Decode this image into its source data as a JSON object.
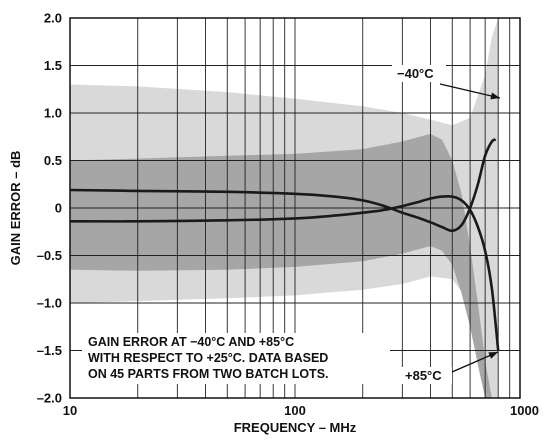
{
  "chart_data": {
    "type": "line",
    "xlabel": "FREQUENCY – MHz",
    "ylabel": "GAIN ERROR – dB",
    "x_scale": "log",
    "xlim": [
      10,
      1000
    ],
    "ylim": [
      -2.0,
      2.0
    ],
    "grid": true,
    "x_ticks": [
      {
        "value": 10,
        "label": "10"
      },
      {
        "value": 100,
        "label": "100"
      },
      {
        "value": 1000,
        "label": "1000"
      }
    ],
    "y_ticks": [
      {
        "value": 2.0,
        "label": "2.0"
      },
      {
        "value": 1.5,
        "label": "1.5"
      },
      {
        "value": 1.0,
        "label": "1.0"
      },
      {
        "value": 0.5,
        "label": "0.5"
      },
      {
        "value": 0,
        "label": "0"
      },
      {
        "value": -0.5,
        "label": "–0.5"
      },
      {
        "value": -1.0,
        "label": "–1.0"
      },
      {
        "value": -1.5,
        "label": "–1.5"
      },
      {
        "value": -2.0,
        "label": "–2.0"
      }
    ],
    "annotation_lines": [
      "GAIN ERROR AT −40°C AND +85°C",
      "WITH RESPECT TO +25°C. DATA BASED",
      "ON 45 PARTS FROM TWO BATCH LOTS."
    ],
    "bands": [
      {
        "for": "−40°C",
        "color": "#d9d9d9",
        "x": [
          10,
          20,
          50,
          100,
          200,
          300,
          400,
          500,
          600,
          700,
          750,
          800
        ],
        "upper": [
          1.3,
          1.28,
          1.22,
          1.15,
          1.07,
          1.0,
          0.93,
          0.87,
          0.95,
          1.4,
          1.8,
          2.0
        ],
        "lower": [
          -1.0,
          -0.98,
          -0.95,
          -0.92,
          -0.86,
          -0.8,
          -0.72,
          -0.75,
          -1.0,
          -1.6,
          -2.0,
          -2.0
        ]
      },
      {
        "for": "+85°C",
        "color": "#a6a6a6",
        "x": [
          10,
          20,
          50,
          100,
          200,
          300,
          400,
          450,
          500,
          550,
          600,
          650,
          700,
          750
        ],
        "upper": [
          0.5,
          0.52,
          0.55,
          0.57,
          0.62,
          0.7,
          0.78,
          0.72,
          0.5,
          0.15,
          -0.4,
          -1.0,
          -1.6,
          -2.0
        ],
        "lower": [
          -0.65,
          -0.66,
          -0.65,
          -0.62,
          -0.56,
          -0.48,
          -0.4,
          -0.45,
          -0.6,
          -0.9,
          -1.25,
          -1.65,
          -2.0,
          -2.0
        ]
      }
    ],
    "series": [
      {
        "name": "−40°C",
        "color": "#1a1a1a",
        "x": [
          10,
          20,
          50,
          100,
          150,
          200,
          250,
          300,
          350,
          400,
          450,
          500,
          550,
          600,
          650,
          700,
          750,
          800
        ],
        "y": [
          -0.14,
          -0.14,
          -0.13,
          -0.11,
          -0.08,
          -0.05,
          -0.02,
          0.02,
          0.06,
          0.1,
          0.12,
          0.12,
          0.08,
          -0.02,
          -0.2,
          -0.45,
          -0.85,
          -1.5
        ]
      },
      {
        "name": "+85°C",
        "color": "#1a1a1a",
        "x": [
          10,
          20,
          50,
          100,
          150,
          200,
          250,
          300,
          350,
          400,
          450,
          500,
          550,
          600,
          650,
          700,
          750,
          780
        ],
        "y": [
          0.19,
          0.18,
          0.17,
          0.15,
          0.12,
          0.08,
          0.02,
          -0.05,
          -0.1,
          -0.15,
          -0.2,
          -0.24,
          -0.18,
          0.0,
          0.25,
          0.55,
          0.7,
          0.72
        ]
      }
    ],
    "callouts": [
      {
        "label": "−40°C"
      },
      {
        "label": "+85°C"
      }
    ]
  }
}
